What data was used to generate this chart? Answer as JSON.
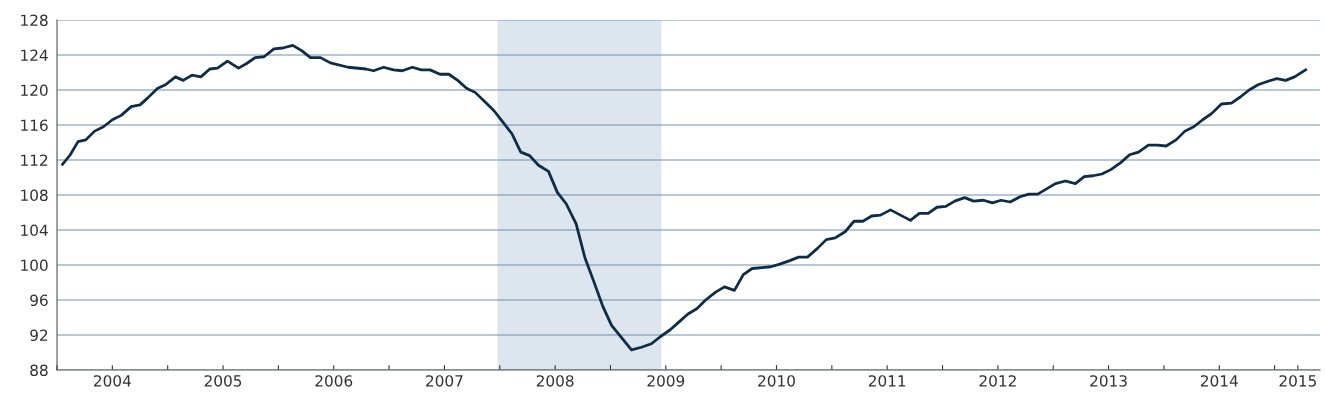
{
  "chart_data": {
    "type": "line",
    "x": [
      2004.05,
      2004.12,
      2004.19,
      2004.26,
      2004.34,
      2004.42,
      2004.5,
      2004.58,
      2004.67,
      2004.75,
      2004.82,
      2004.91,
      2004.98,
      2005.07,
      2005.14,
      2005.22,
      2005.3,
      2005.38,
      2005.45,
      2005.54,
      2005.64,
      2005.71,
      2005.79,
      2005.87,
      2005.96,
      2006.04,
      2006.13,
      2006.21,
      2006.29,
      2006.38,
      2006.47,
      2006.63,
      2006.79,
      2006.86,
      2006.95,
      2007.04,
      2007.12,
      2007.21,
      2007.29,
      2007.37,
      2007.46,
      2007.54,
      2007.62,
      2007.7,
      2007.78,
      2007.87,
      2007.95,
      2008.03,
      2008.11,
      2008.19,
      2008.27,
      2008.35,
      2008.44,
      2008.52,
      2008.6,
      2008.69,
      2008.77,
      2008.85,
      2008.93,
      2009.01,
      2009.1,
      2009.19,
      2009.28,
      2009.37,
      2009.45,
      2009.54,
      2009.62,
      2009.7,
      2009.78,
      2009.86,
      2009.95,
      2010.03,
      2010.12,
      2010.2,
      2010.28,
      2010.37,
      2010.45,
      2010.53,
      2010.62,
      2010.7,
      2010.78,
      2010.87,
      2010.95,
      2011.03,
      2011.12,
      2011.2,
      2011.28,
      2011.36,
      2011.44,
      2011.53,
      2011.62,
      2011.71,
      2011.79,
      2011.87,
      2011.95,
      2012.03,
      2012.11,
      2012.2,
      2012.28,
      2012.37,
      2012.45,
      2012.53,
      2012.61,
      2012.7,
      2012.78,
      2012.86,
      2012.94,
      2013.02,
      2013.11,
      2013.2,
      2013.28,
      2013.36,
      2013.44,
      2013.52,
      2013.61,
      2013.69,
      2013.77,
      2013.86,
      2013.94,
      2014.02,
      2014.11,
      2014.19,
      2014.27,
      2014.35,
      2014.43,
      2014.52,
      2014.61,
      2014.69,
      2014.77,
      2014.85,
      2014.94,
      2015.02,
      2015.1,
      2015.18,
      2015.28
    ],
    "series": [
      {
        "color": "#0d2c48",
        "values": [
          111.5,
          112.6,
          114.1,
          114.3,
          115.3,
          115.8,
          116.6,
          117.1,
          118.1,
          118.3,
          119.1,
          120.2,
          120.6,
          121.5,
          121.1,
          121.7,
          121.5,
          122.4,
          122.5,
          123.3,
          122.5,
          123.0,
          123.7,
          123.8,
          124.7,
          124.8,
          125.1,
          124.5,
          123.7,
          123.7,
          123.1,
          122.6,
          122.4,
          122.2,
          122.6,
          122.3,
          122.2,
          122.6,
          122.3,
          122.3,
          121.8,
          121.8,
          121.1,
          120.2,
          119.7,
          118.6,
          117.6,
          116.3,
          115.0,
          112.9,
          112.5,
          111.4,
          110.7,
          108.3,
          107.0,
          104.7,
          100.8,
          98.1,
          95.3,
          93.1,
          91.7,
          90.3,
          90.6,
          91.0,
          91.8,
          92.6,
          93.5,
          94.4,
          95.0,
          96.0,
          96.9,
          97.5,
          97.1,
          98.9,
          99.6,
          99.7,
          99.8,
          100.1,
          100.5,
          100.9,
          100.9,
          101.9,
          102.9,
          103.1,
          103.8,
          105.0,
          105.0,
          105.6,
          105.7,
          106.3,
          105.7,
          105.1,
          105.9,
          105.9,
          106.6,
          106.7,
          107.3,
          107.7,
          107.3,
          107.4,
          107.1,
          107.4,
          107.2,
          107.8,
          108.1,
          108.1,
          108.7,
          109.3,
          109.6,
          109.3,
          110.1,
          110.2,
          110.4,
          110.9,
          111.7,
          112.6,
          112.9,
          113.7,
          113.7,
          113.6,
          114.3,
          115.3,
          115.8,
          116.6,
          117.3,
          118.4,
          118.5,
          119.2,
          120.0,
          120.6,
          121.0,
          121.3,
          121.1,
          121.5,
          122.3
        ]
      }
    ],
    "xlim": [
      2004.0,
      2015.41
    ],
    "xticks": [
      {
        "value": 2004,
        "label": null
      },
      {
        "value": 2004.5,
        "label": "2004"
      },
      {
        "value": 2005,
        "label": null
      },
      {
        "value": 2005.5,
        "label": "2005"
      },
      {
        "value": 2006,
        "label": null
      },
      {
        "value": 2006.5,
        "label": "2006"
      },
      {
        "value": 2007,
        "label": null
      },
      {
        "value": 2007.5,
        "label": "2007"
      },
      {
        "value": 2008,
        "label": null
      },
      {
        "value": 2008.5,
        "label": "2008"
      },
      {
        "value": 2009,
        "label": null
      },
      {
        "value": 2009.5,
        "label": "2009"
      },
      {
        "value": 2010,
        "label": null
      },
      {
        "value": 2010.5,
        "label": "2010"
      },
      {
        "value": 2011,
        "label": null
      },
      {
        "value": 2011.5,
        "label": "2011"
      },
      {
        "value": 2012,
        "label": null
      },
      {
        "value": 2012.5,
        "label": "2012"
      },
      {
        "value": 2013,
        "label": null
      },
      {
        "value": 2013.5,
        "label": "2013"
      },
      {
        "value": 2014,
        "label": null
      },
      {
        "value": 2014.5,
        "label": "2014"
      },
      {
        "value": 2015,
        "label": null
      },
      {
        "value": 2015.21,
        "label": "2015"
      }
    ],
    "ylim": [
      88,
      128
    ],
    "yticks": [
      88,
      92,
      96,
      100,
      104,
      108,
      112,
      116,
      120,
      124,
      128
    ],
    "bands": [
      {
        "axis": "x",
        "from": 2007.98,
        "to": 2009.46,
        "color": "#dde5ee"
      }
    ],
    "grid": "y",
    "legend": false
  }
}
